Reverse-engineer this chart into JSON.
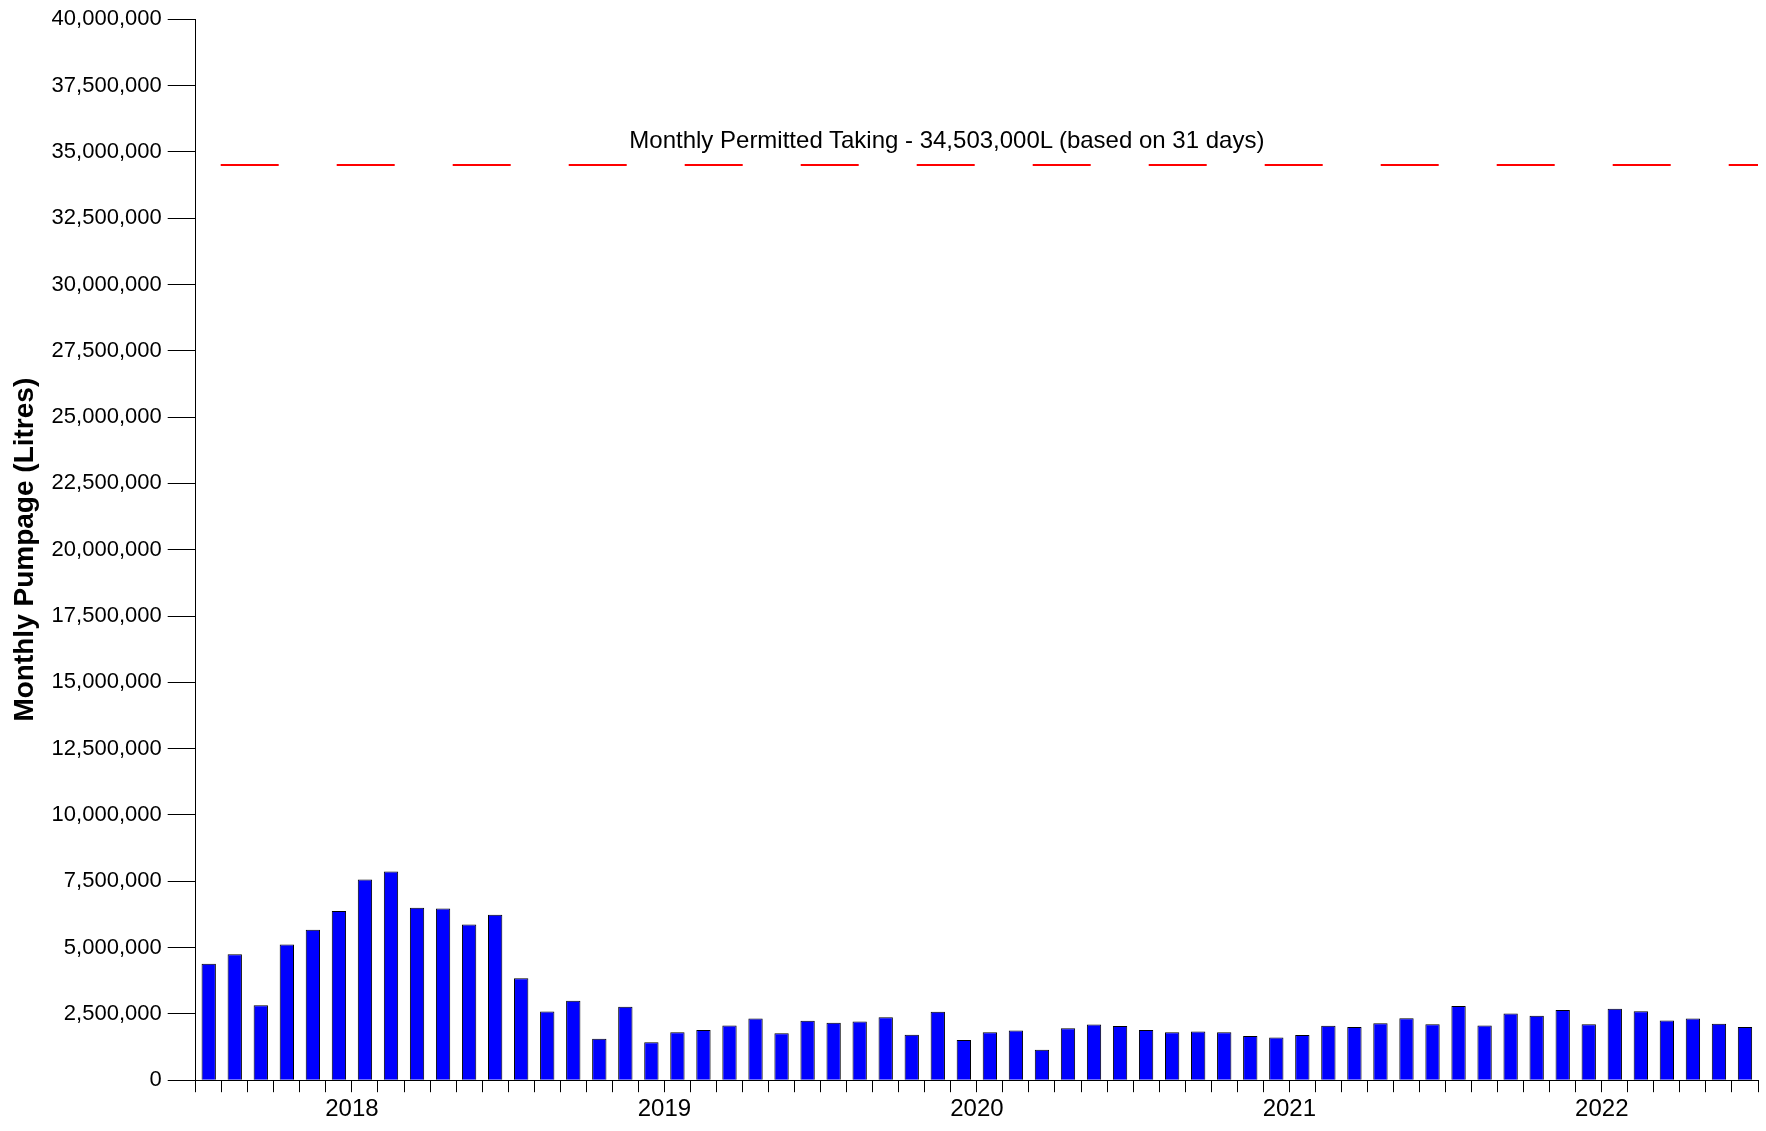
{
  "chart_data": {
    "type": "bar",
    "ylabel": "Monthly Pumpage (Litres)",
    "categories": [
      null,
      null,
      null,
      null,
      null,
      null,
      "2018",
      null,
      null,
      null,
      null,
      null,
      null,
      null,
      null,
      null,
      null,
      null,
      "2019",
      null,
      null,
      null,
      null,
      null,
      null,
      null,
      null,
      null,
      null,
      null,
      "2020",
      null,
      null,
      null,
      null,
      null,
      null,
      null,
      null,
      null,
      null,
      null,
      "2021",
      null,
      null,
      null,
      null,
      null,
      null,
      null,
      null,
      null,
      null,
      null,
      "2022",
      null,
      null,
      null,
      null,
      null
    ],
    "values": [
      4390000,
      4750000,
      2830000,
      5120000,
      5670000,
      6380000,
      7570000,
      7870000,
      6500000,
      6470000,
      5870000,
      6240000,
      3840000,
      2590000,
      3000000,
      1560000,
      2770000,
      1430000,
      1810000,
      1890000,
      2060000,
      2330000,
      1770000,
      2240000,
      2170000,
      2210000,
      2370000,
      1710000,
      2580000,
      1520000,
      1810000,
      1870000,
      1150000,
      1960000,
      2100000,
      2040000,
      1890000,
      1810000,
      1840000,
      1810000,
      1670000,
      1610000,
      1700000,
      2050000,
      2010000,
      2150000,
      2340000,
      2110000,
      2800000,
      2060000,
      2510000,
      2430000,
      2650000,
      2110000,
      2690000,
      2600000,
      2250000,
      2330000,
      2130000,
      2010000
    ],
    "color": "#0000ff",
    "ylim": [
      0,
      40000000
    ],
    "yticks": [
      {
        "value": 0,
        "label": "0"
      },
      {
        "value": 2500000,
        "label": "2,500,000"
      },
      {
        "value": 5000000,
        "label": "5,000,000"
      },
      {
        "value": 7500000,
        "label": "7,500,000"
      },
      {
        "value": 10000000,
        "label": "10,000,000"
      },
      {
        "value": 12500000,
        "label": "12,500,000"
      },
      {
        "value": 15000000,
        "label": "15,000,000"
      },
      {
        "value": 17500000,
        "label": "17,500,000"
      },
      {
        "value": 20000000,
        "label": "20,000,000"
      },
      {
        "value": 22500000,
        "label": "22,500,000"
      },
      {
        "value": 25000000,
        "label": "25,000,000"
      },
      {
        "value": 27500000,
        "label": "27,500,000"
      },
      {
        "value": 30000000,
        "label": "30,000,000"
      },
      {
        "value": 32500000,
        "label": "32,500,000"
      },
      {
        "value": 35000000,
        "label": "35,000,000"
      },
      {
        "value": 37500000,
        "label": "37,500,000"
      },
      {
        "value": 40000000,
        "label": "40,000,000"
      }
    ],
    "ref_lines": [
      {
        "axis": "y",
        "value": 34503000,
        "label": "Monthly Permitted Taking - 34,503,000L (based on 31 days)",
        "color": "#ff0000",
        "line_style": "dashed"
      }
    ],
    "grid": false,
    "legend": false
  }
}
